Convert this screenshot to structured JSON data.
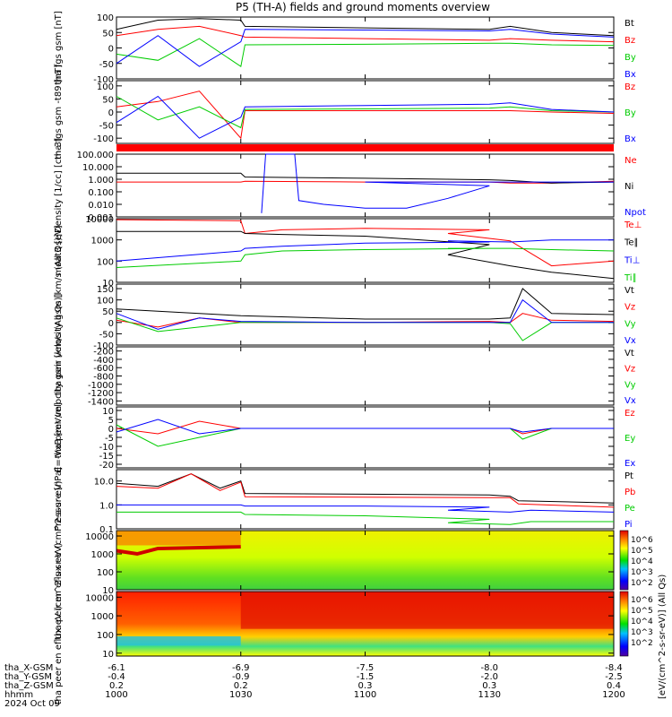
{
  "title": "P5 (TH-A) fields and ground moments overview",
  "colors": {
    "black": "#000000",
    "red": "#ff0000",
    "green": "#00cc00",
    "blue": "#0000ff",
    "bar": "#ff0000"
  },
  "x_axis": {
    "ticks": [
      "1000",
      "1030",
      "1100",
      "1130",
      "1200"
    ],
    "rows": [
      {
        "label": "tha_X-GSM",
        "values": [
          "-6.1",
          "-6.9",
          "-7.5",
          "-8.0",
          "-8.4"
        ]
      },
      {
        "label": "tha_Y-GSM",
        "values": [
          "-0.4",
          "-0.9",
          "-1.5",
          "-2.0",
          "-2.5"
        ]
      },
      {
        "label": "tha_Z-GSM",
        "values": [
          "0.2",
          "0.2",
          "0.3",
          "0.3",
          "0.4"
        ]
      },
      {
        "label": "hhmm",
        "values": [
          "1000",
          "1030",
          "1100",
          "1130",
          "1200"
        ]
      }
    ],
    "date": "2024 Oct 09"
  },
  "colorbar": {
    "label": "[eV/(cm^2-s-sr-eV)] (All Qs)",
    "ticks1": [
      "10^6",
      "10^5",
      "10^4",
      "10^3",
      "10^2"
    ],
    "ticks2": [
      "10^6",
      "10^5",
      "10^4",
      "10^3",
      "10^2"
    ]
  },
  "chart_data": [
    {
      "type": "line",
      "ylabel": "tha fgs gsm [nT]",
      "ylim": [
        -100,
        100
      ],
      "yticks": [
        "100",
        "50",
        "0",
        "-50",
        "-100"
      ],
      "series": [
        {
          "name": "Bt",
          "color": "black",
          "x": [
            1000,
            1010,
            1020,
            1030,
            1031,
            1060,
            1090,
            1135,
            1145,
            1200
          ],
          "values": [
            60,
            90,
            95,
            90,
            70,
            65,
            60,
            70,
            50,
            40
          ]
        },
        {
          "name": "Bz",
          "color": "red",
          "x": [
            1000,
            1010,
            1020,
            1030,
            1031,
            1060,
            1090,
            1135,
            1145,
            1200
          ],
          "values": [
            40,
            60,
            70,
            40,
            35,
            30,
            25,
            30,
            25,
            20
          ]
        },
        {
          "name": "By",
          "color": "green",
          "x": [
            1000,
            1010,
            1020,
            1030,
            1031,
            1060,
            1090,
            1135,
            1145,
            1200
          ],
          "values": [
            -20,
            -40,
            30,
            -60,
            10,
            12,
            15,
            15,
            10,
            8
          ]
        },
        {
          "name": "Bx",
          "color": "blue",
          "x": [
            1000,
            1010,
            1020,
            1030,
            1031,
            1060,
            1090,
            1135,
            1145,
            1200
          ],
          "values": [
            -50,
            40,
            -60,
            20,
            60,
            58,
            55,
            60,
            45,
            35
          ]
        }
      ]
    },
    {
      "type": "line",
      "ylabel": "tha fgs gsm -t89 [nT]",
      "ylim": [
        -120,
        120
      ],
      "yticks": [
        "100",
        "50",
        "0",
        "-50",
        "-100"
      ],
      "series": [
        {
          "name": "Bz",
          "color": "red",
          "x": [
            1000,
            1010,
            1020,
            1030,
            1031,
            1060,
            1090,
            1135,
            1145,
            1200
          ],
          "values": [
            20,
            40,
            80,
            -100,
            5,
            5,
            5,
            5,
            0,
            -5
          ]
        },
        {
          "name": "By",
          "color": "green",
          "x": [
            1000,
            1010,
            1020,
            1030,
            1031,
            1060,
            1090,
            1135,
            1145,
            1200
          ],
          "values": [
            60,
            -30,
            20,
            -60,
            10,
            12,
            15,
            20,
            5,
            0
          ]
        },
        {
          "name": "Bx",
          "color": "blue",
          "x": [
            1000,
            1010,
            1020,
            1030,
            1031,
            1060,
            1090,
            1135,
            1145,
            1200
          ],
          "values": [
            -40,
            60,
            -100,
            -20,
            20,
            25,
            30,
            35,
            10,
            0
          ]
        }
      ]
    },
    {
      "type": "line",
      "ylabel": "Density [1/cc] [cm-3]",
      "ylim": [
        0.001,
        100
      ],
      "scale": "log",
      "yticks": [
        "100.000",
        "10.000",
        "1.000",
        "0.100",
        "0.010",
        "0.001"
      ],
      "series": [
        {
          "name": "Ne",
          "color": "red",
          "x": [
            1000,
            1030,
            1031,
            1060,
            1090,
            1135,
            1145,
            1200
          ],
          "values": [
            0.6,
            0.6,
            0.7,
            0.6,
            0.6,
            0.5,
            0.5,
            0.7
          ]
        },
        {
          "name": "Ni",
          "color": "black",
          "x": [
            1000,
            1030,
            1031,
            1060,
            1090,
            1135,
            1145,
            1200
          ],
          "values": [
            3,
            3,
            1.5,
            1.2,
            0.9,
            0.8,
            0.5,
            0.6
          ]
        },
        {
          "name": "Npot",
          "color": "blue",
          "x": [
            1035,
            1036,
            1043,
            1044,
            1050,
            1060,
            1070,
            1080,
            1090,
            1100,
            1200
          ],
          "values": [
            0.002,
            100,
            100,
            0.02,
            0.01,
            0.005,
            0.005,
            0.03,
            0.3,
            0.6,
            0.6
          ]
        }
      ]
    },
    {
      "type": "line",
      "ylabel": "moat3 [eV]",
      "ylim": [
        10,
        10000
      ],
      "scale": "log",
      "yticks": [
        "10000",
        "1000",
        "100",
        "10"
      ],
      "series": [
        {
          "name": "Te⊥",
          "color": "red",
          "x": [
            1000,
            1030,
            1031,
            1040,
            1060,
            1090,
            1120,
            1135,
            1145,
            1200
          ],
          "values": [
            9000,
            8000,
            2000,
            3000,
            3500,
            3000,
            2000,
            900,
            60,
            100
          ]
        },
        {
          "name": "Te∥",
          "color": "black",
          "x": [
            1000,
            1030,
            1031,
            1040,
            1060,
            1090,
            1120,
            1135,
            1145,
            1200
          ],
          "values": [
            2500,
            2500,
            2000,
            1800,
            1500,
            600,
            200,
            60,
            30,
            15
          ]
        },
        {
          "name": "Ti⊥",
          "color": "blue",
          "x": [
            1000,
            1030,
            1031,
            1040,
            1060,
            1090,
            1120,
            1135,
            1145,
            1200
          ],
          "values": [
            100,
            300,
            400,
            500,
            700,
            800,
            900,
            800,
            1000,
            1000
          ]
        },
        {
          "name": "Ti∥",
          "color": "green",
          "x": [
            1000,
            1030,
            1031,
            1040,
            1060,
            1090,
            1120,
            1135,
            1145,
            1200
          ],
          "values": [
            50,
            100,
            200,
            300,
            350,
            400,
            400,
            400,
            350,
            300
          ]
        }
      ]
    },
    {
      "type": "line",
      "ylabel": "tha peir velocity gsm [km/s (All Qs)]",
      "ylim": [
        -100,
        170
      ],
      "yticks": [
        "150",
        "100",
        "50",
        "0",
        "-50",
        "-100"
      ],
      "series": [
        {
          "name": "Vt",
          "color": "black",
          "x": [
            1000,
            1010,
            1020,
            1030,
            1060,
            1090,
            1135,
            1138,
            1145,
            1200
          ],
          "values": [
            60,
            50,
            40,
            30,
            15,
            15,
            20,
            150,
            40,
            35
          ]
        },
        {
          "name": "Vz",
          "color": "red",
          "x": [
            1000,
            1010,
            1020,
            1030,
            1060,
            1090,
            1135,
            1138,
            1145,
            1200
          ],
          "values": [
            10,
            -20,
            20,
            0,
            0,
            5,
            0,
            40,
            10,
            5
          ]
        },
        {
          "name": "Vy",
          "color": "green",
          "x": [
            1000,
            1010,
            1020,
            1030,
            1060,
            1090,
            1135,
            1138,
            1145,
            1200
          ],
          "values": [
            20,
            -40,
            -20,
            0,
            0,
            0,
            -5,
            -80,
            0,
            0
          ]
        },
        {
          "name": "Vx",
          "color": "blue",
          "x": [
            1000,
            1010,
            1020,
            1030,
            1060,
            1090,
            1135,
            1138,
            1145,
            1200
          ],
          "values": [
            40,
            -30,
            20,
            5,
            0,
            0,
            0,
            100,
            0,
            0
          ]
        }
      ]
    },
    {
      "type": "line",
      "ylabel": "tha peer velocity gsm [km/s (All Qs)]",
      "ylim": [
        -1500,
        -100
      ],
      "yticks": [
        "-200",
        "-400",
        "-600",
        "-800",
        "-1000",
        "-1200",
        "-1400"
      ],
      "series": [
        {
          "name": "Vt",
          "color": "black",
          "values": []
        },
        {
          "name": "Vz",
          "color": "red",
          "values": []
        },
        {
          "name": "Vy",
          "color": "green",
          "values": []
        },
        {
          "name": "Vx",
          "color": "blue",
          "values": []
        }
      ]
    },
    {
      "type": "line",
      "ylabel": "E=-VxB [mV/m]",
      "ylim": [
        -22,
        12
      ],
      "yticks": [
        "10",
        "5",
        "0",
        "-5",
        "-10",
        "-15",
        "-20"
      ],
      "series": [
        {
          "name": "Ez",
          "color": "red",
          "x": [
            1000,
            1010,
            1020,
            1030,
            1060,
            1090,
            1135,
            1138,
            1145,
            1200
          ],
          "values": [
            0,
            -3,
            4,
            0,
            0,
            0,
            0,
            -3,
            0,
            0
          ]
        },
        {
          "name": "Ey",
          "color": "green",
          "x": [
            1000,
            1010,
            1020,
            1030,
            1060,
            1090,
            1135,
            1138,
            1145,
            1200
          ],
          "values": [
            2,
            -10,
            -5,
            0,
            0,
            0,
            0,
            -6,
            0,
            0
          ]
        },
        {
          "name": "Ex",
          "color": "blue",
          "x": [
            1000,
            1010,
            1020,
            1030,
            1060,
            1090,
            1135,
            1138,
            1145,
            1200
          ],
          "values": [
            -2,
            5,
            -3,
            0,
            0,
            0,
            0,
            -2,
            0,
            0
          ]
        }
      ]
    },
    {
      "type": "line",
      "ylabel": "Pressure [nPa]",
      "ylim": [
        0.1,
        30
      ],
      "scale": "log",
      "yticks": [
        "10.0",
        "1.0",
        "0.1"
      ],
      "series": [
        {
          "name": "Pt",
          "color": "black",
          "x": [
            1000,
            1010,
            1018,
            1025,
            1030,
            1031,
            1060,
            1090,
            1135,
            1137,
            1200
          ],
          "values": [
            8,
            6,
            20,
            5,
            10,
            3,
            2.8,
            2.6,
            2.3,
            1.5,
            1.2
          ]
        },
        {
          "name": "Pb",
          "color": "red",
          "x": [
            1000,
            1010,
            1018,
            1025,
            1030,
            1031,
            1060,
            1090,
            1135,
            1137,
            1200
          ],
          "values": [
            6,
            5,
            20,
            4,
            9,
            2.2,
            2.1,
            2,
            2,
            1.1,
            0.8
          ]
        },
        {
          "name": "Pe",
          "color": "green",
          "x": [
            1000,
            1030,
            1031,
            1060,
            1090,
            1120,
            1135,
            1140,
            1200
          ],
          "values": [
            0.5,
            0.5,
            0.4,
            0.35,
            0.25,
            0.18,
            0.15,
            0.2,
            0.2
          ]
        },
        {
          "name": "Pi",
          "color": "blue",
          "x": [
            1000,
            1030,
            1031,
            1060,
            1090,
            1120,
            1135,
            1140,
            1200
          ],
          "values": [
            1,
            1,
            0.9,
            0.9,
            0.8,
            0.6,
            0.5,
            0.6,
            0.5
          ]
        }
      ]
    },
    {
      "type": "heatmap",
      "ylabel": "tha peir en eflux eV (cm^2-s-sr-eV)",
      "ylim": [
        10,
        20000
      ],
      "scale": "log",
      "yticks": [
        "10000",
        "1000",
        "100",
        "10"
      ]
    },
    {
      "type": "heatmap",
      "ylabel": "tha peer en eflux eV (cm^2-s-sr-eV)",
      "ylim": [
        7,
        20000
      ],
      "scale": "log",
      "yticks": [
        "10000",
        "1000",
        "100",
        "10"
      ]
    }
  ]
}
